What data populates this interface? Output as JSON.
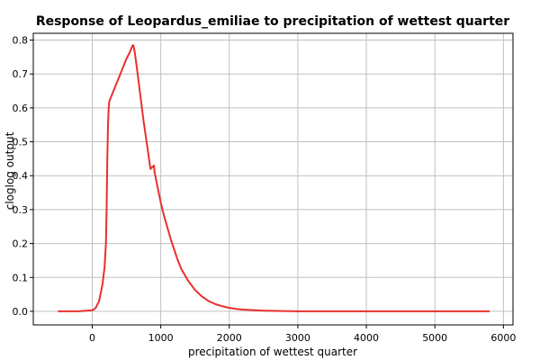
{
  "chart_data": {
    "type": "line",
    "title": "Response of Leopardus_emiliae to precipitation of wettest quarter",
    "xlabel": "precipitation of wettest quarter",
    "ylabel": "cloglog output",
    "xlim": [
      -860,
      6140
    ],
    "ylim": [
      -0.04,
      0.82
    ],
    "grid": true,
    "x_ticks": [
      0,
      1000,
      2000,
      3000,
      4000,
      5000,
      6000
    ],
    "y_ticks": [
      0.0,
      0.1,
      0.2,
      0.3,
      0.4,
      0.5,
      0.6,
      0.7,
      0.8
    ],
    "x_tick_labels": [
      "0",
      "1000",
      "2000",
      "3000",
      "4000",
      "5000",
      "6000"
    ],
    "y_tick_labels": [
      "0.0",
      "0.1",
      "0.2",
      "0.3",
      "0.4",
      "0.5",
      "0.6",
      "0.7",
      "0.8"
    ],
    "series": [
      {
        "color": "#e8302c",
        "x": [
          -500,
          -200,
          0,
          50,
          100,
          150,
          180,
          200,
          210,
          220,
          230,
          240,
          250,
          260,
          270,
          300,
          350,
          400,
          450,
          500,
          550,
          590,
          600,
          620,
          650,
          700,
          750,
          800,
          850,
          900,
          910,
          950,
          1000,
          1050,
          1100,
          1150,
          1200,
          1250,
          1300,
          1400,
          1500,
          1600,
          1700,
          1800,
          1900,
          2000,
          2100,
          2200,
          2300,
          2500,
          2700,
          3000,
          3500,
          4000,
          5000,
          5800
        ],
        "y": [
          0.0,
          0.0,
          0.003,
          0.01,
          0.03,
          0.08,
          0.13,
          0.2,
          0.3,
          0.45,
          0.55,
          0.6,
          0.62,
          0.625,
          0.63,
          0.645,
          0.67,
          0.695,
          0.72,
          0.745,
          0.765,
          0.785,
          0.785,
          0.765,
          0.72,
          0.64,
          0.56,
          0.49,
          0.42,
          0.43,
          0.41,
          0.37,
          0.32,
          0.28,
          0.245,
          0.21,
          0.18,
          0.15,
          0.125,
          0.09,
          0.063,
          0.044,
          0.03,
          0.021,
          0.015,
          0.01,
          0.007,
          0.005,
          0.004,
          0.002,
          0.001,
          0.0,
          0.0,
          0.0,
          0.0,
          0.0
        ]
      }
    ]
  }
}
